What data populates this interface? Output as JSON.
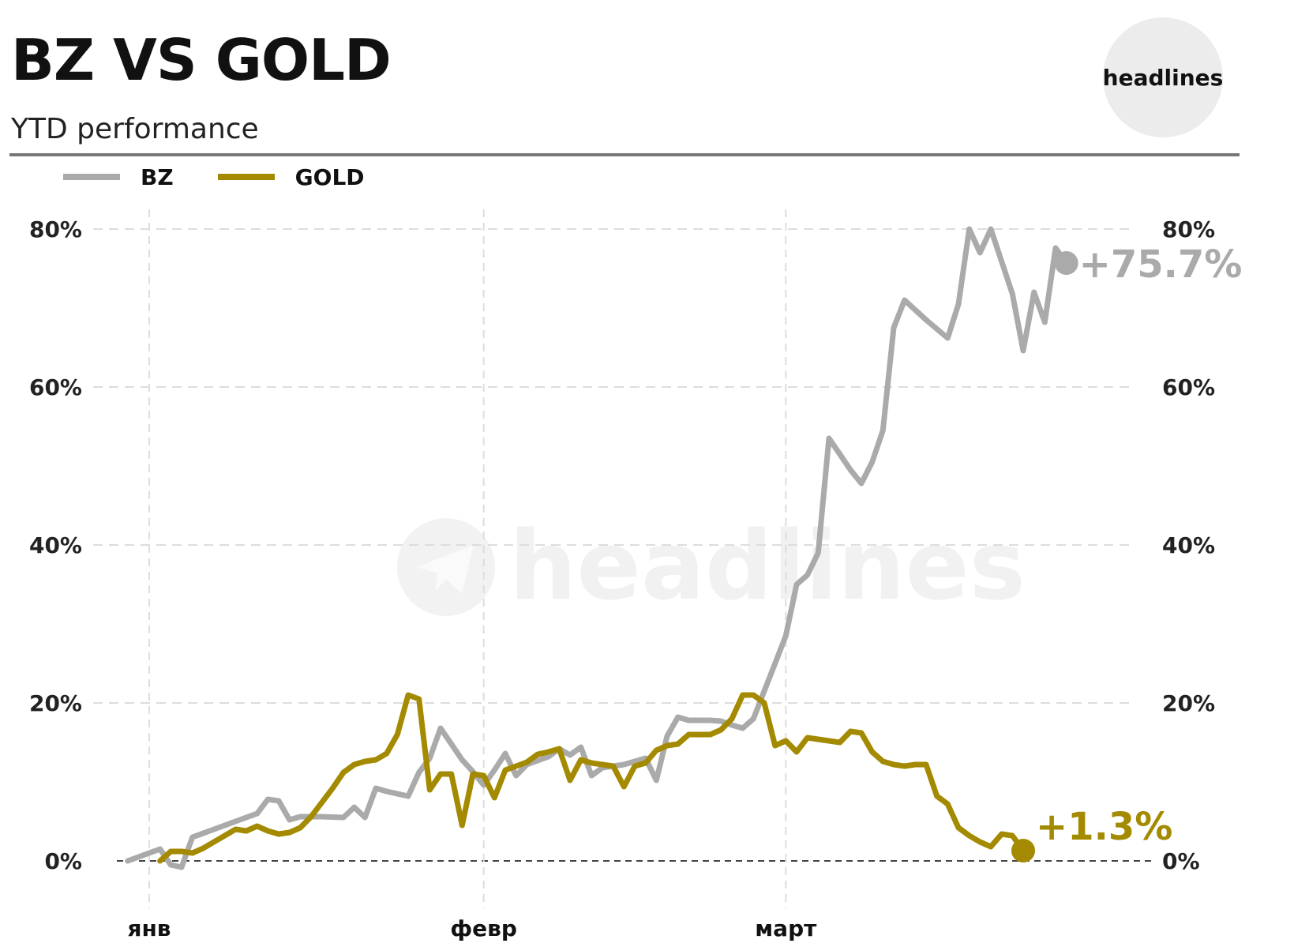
{
  "header": {
    "title": "BZ VS GOLD",
    "subtitle": "YTD performance",
    "logo_text": "headlines"
  },
  "watermark": {
    "text": "headlines",
    "icon": "telegram-icon"
  },
  "colors": {
    "bz": "#aaaaaa",
    "gold": "#a38a00",
    "grid": "#dddddd",
    "zero_line": "#444444"
  },
  "chart_data": {
    "type": "line",
    "title": "BZ VS GOLD",
    "subtitle": "YTD performance",
    "xlabel": "",
    "ylabel": "",
    "x_tick_labels": [
      "янв",
      "февр",
      "март"
    ],
    "y_tick_labels": [
      "0%",
      "20%",
      "40%",
      "60%",
      "80%"
    ],
    "y_ticks": [
      0,
      20,
      40,
      60,
      80
    ],
    "ylim": [
      -5,
      85
    ],
    "xlim": [
      -3,
      93
    ],
    "x_month_starts": [
      0,
      31,
      59
    ],
    "grid": true,
    "legend_placement": "top-left",
    "series": [
      {
        "name": "BZ",
        "end_label": "+75.7%",
        "points": [
          [
            -2,
            0
          ],
          [
            1,
            1.5
          ],
          [
            2,
            -0.5
          ],
          [
            3,
            -0.8
          ],
          [
            4,
            3
          ],
          [
            6,
            4
          ],
          [
            8,
            5
          ],
          [
            10,
            6
          ],
          [
            11,
            7.8
          ],
          [
            12,
            7.6
          ],
          [
            13,
            5.2
          ],
          [
            14,
            5.6
          ],
          [
            16,
            5.6
          ],
          [
            18,
            5.5
          ],
          [
            19,
            6.8
          ],
          [
            20,
            5.5
          ],
          [
            21,
            9.2
          ],
          [
            22,
            8.8
          ],
          [
            24,
            8.2
          ],
          [
            25,
            11.2
          ],
          [
            26,
            13
          ],
          [
            27,
            16.8
          ],
          [
            28,
            14.8
          ],
          [
            29,
            12.8
          ],
          [
            30,
            11.3
          ],
          [
            31,
            9.6
          ],
          [
            32,
            11.5
          ],
          [
            33,
            13.6
          ],
          [
            34,
            10.8
          ],
          [
            35,
            12.2
          ],
          [
            37,
            13.2
          ],
          [
            38,
            14.2
          ],
          [
            39,
            13.4
          ],
          [
            40,
            14.4
          ],
          [
            41,
            10.8
          ],
          [
            42,
            11.8
          ],
          [
            44,
            12.2
          ],
          [
            46,
            13
          ],
          [
            47,
            10.2
          ],
          [
            48,
            15.8
          ],
          [
            49,
            18.2
          ],
          [
            50,
            17.8
          ],
          [
            52,
            17.8
          ],
          [
            53,
            17.7
          ],
          [
            54,
            17.2
          ],
          [
            55,
            16.8
          ],
          [
            56,
            18
          ],
          [
            57,
            21.5
          ],
          [
            58,
            25
          ],
          [
            59,
            28.5
          ],
          [
            60,
            35
          ],
          [
            61,
            36.2
          ],
          [
            62,
            39
          ],
          [
            63,
            53.5
          ],
          [
            64,
            51.5
          ],
          [
            65,
            49.5
          ],
          [
            66,
            47.8
          ],
          [
            67,
            50.5
          ],
          [
            68,
            54.5
          ],
          [
            69,
            67.5
          ],
          [
            70,
            71
          ],
          [
            72,
            68.5
          ],
          [
            74,
            66.2
          ],
          [
            75,
            70.5
          ],
          [
            76,
            80
          ],
          [
            77,
            77
          ],
          [
            78,
            80
          ],
          [
            80,
            71.8
          ],
          [
            81,
            64.6
          ],
          [
            82,
            72
          ],
          [
            83,
            68.2
          ],
          [
            84,
            77.6
          ],
          [
            85,
            75.7
          ]
        ]
      },
      {
        "name": "GOLD",
        "end_label": "+1.3%",
        "points": [
          [
            1,
            0
          ],
          [
            2,
            1.2
          ],
          [
            3,
            1.2
          ],
          [
            4,
            1.0
          ],
          [
            5,
            1.6
          ],
          [
            6,
            2.4
          ],
          [
            7,
            3.2
          ],
          [
            8,
            4
          ],
          [
            9,
            3.8
          ],
          [
            10,
            4.4
          ],
          [
            11,
            3.8
          ],
          [
            12,
            3.4
          ],
          [
            13,
            3.6
          ],
          [
            14,
            4.2
          ],
          [
            15,
            5.6
          ],
          [
            16,
            7.4
          ],
          [
            17,
            9.2
          ],
          [
            18,
            11.2
          ],
          [
            19,
            12.2
          ],
          [
            20,
            12.6
          ],
          [
            21,
            12.8
          ],
          [
            22,
            13.6
          ],
          [
            23,
            16
          ],
          [
            24,
            21
          ],
          [
            25,
            20.5
          ],
          [
            26,
            9
          ],
          [
            27,
            11
          ],
          [
            28,
            11
          ],
          [
            29,
            4.5
          ],
          [
            30,
            11
          ],
          [
            31,
            10.8
          ],
          [
            32,
            8
          ],
          [
            33,
            11.5
          ],
          [
            34,
            12
          ],
          [
            35,
            12.5
          ],
          [
            36,
            13.5
          ],
          [
            37,
            13.8
          ],
          [
            38,
            14.2
          ],
          [
            39,
            10.2
          ],
          [
            40,
            12.8
          ],
          [
            41,
            12.4
          ],
          [
            42,
            12.2
          ],
          [
            43,
            12
          ],
          [
            44,
            9.4
          ],
          [
            45,
            12
          ],
          [
            46,
            12.4
          ],
          [
            47,
            14
          ],
          [
            48,
            14.6
          ],
          [
            49,
            14.8
          ],
          [
            50,
            16
          ],
          [
            51,
            16
          ],
          [
            52,
            16
          ],
          [
            53,
            16.6
          ],
          [
            54,
            18
          ],
          [
            55,
            21
          ],
          [
            56,
            21
          ],
          [
            57,
            20
          ],
          [
            58,
            14.6
          ],
          [
            59,
            15.2
          ],
          [
            60,
            13.8
          ],
          [
            61,
            15.6
          ],
          [
            62,
            15.4
          ],
          [
            63,
            15.2
          ],
          [
            64,
            15.0
          ],
          [
            65,
            16.4
          ],
          [
            66,
            16.2
          ],
          [
            67,
            13.8
          ],
          [
            68,
            12.6
          ],
          [
            69,
            12.2
          ],
          [
            70,
            12
          ],
          [
            71,
            12.2
          ],
          [
            72,
            12.2
          ],
          [
            73,
            8.2
          ],
          [
            74,
            7.2
          ],
          [
            75,
            4.2
          ],
          [
            76,
            3.2
          ],
          [
            77,
            2.4
          ],
          [
            78,
            1.8
          ],
          [
            79,
            3.4
          ],
          [
            80,
            3.2
          ],
          [
            81,
            1.3
          ]
        ]
      }
    ]
  }
}
